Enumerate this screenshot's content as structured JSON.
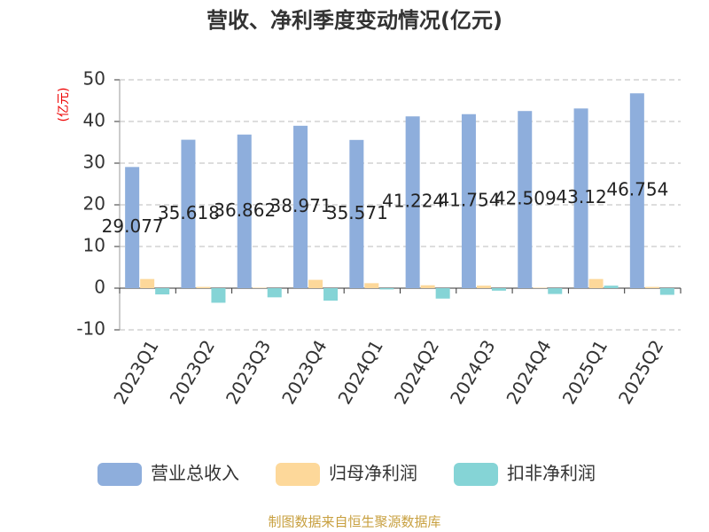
{
  "chart_data": {
    "type": "bar",
    "title": "营收、净利季度变动情况(亿元)",
    "y_label": "(亿元)",
    "categories": [
      "2023Q1",
      "2023Q2",
      "2023Q3",
      "2023Q4",
      "2024Q1",
      "2024Q2",
      "2024Q3",
      "2024Q4",
      "2025Q1",
      "2025Q2"
    ],
    "series": [
      {
        "name": "营业总收入",
        "color": "#8eaedc",
        "show_labels": true,
        "values": [
          29.077,
          35.618,
          36.862,
          38.971,
          35.571,
          41.224,
          41.754,
          42.509,
          43.12,
          46.754
        ]
      },
      {
        "name": "归母净利润",
        "color": "#fdd89a",
        "values": [
          2.2,
          0.3,
          0.1,
          2.0,
          1.2,
          0.7,
          0.6,
          0.1,
          2.2,
          0.3
        ]
      },
      {
        "name": "扣非净利润",
        "color": "#85d4d6",
        "values": [
          -1.5,
          -3.5,
          -2.2,
          -3.0,
          -0.3,
          -2.5,
          -0.6,
          -1.4,
          0.6,
          -1.6
        ]
      }
    ],
    "ylim": [
      -10,
      50
    ],
    "yticks": [
      -10,
      0,
      10,
      20,
      30,
      40,
      50
    ],
    "grid": true,
    "source": "制图数据来自恒生聚源数据库"
  }
}
